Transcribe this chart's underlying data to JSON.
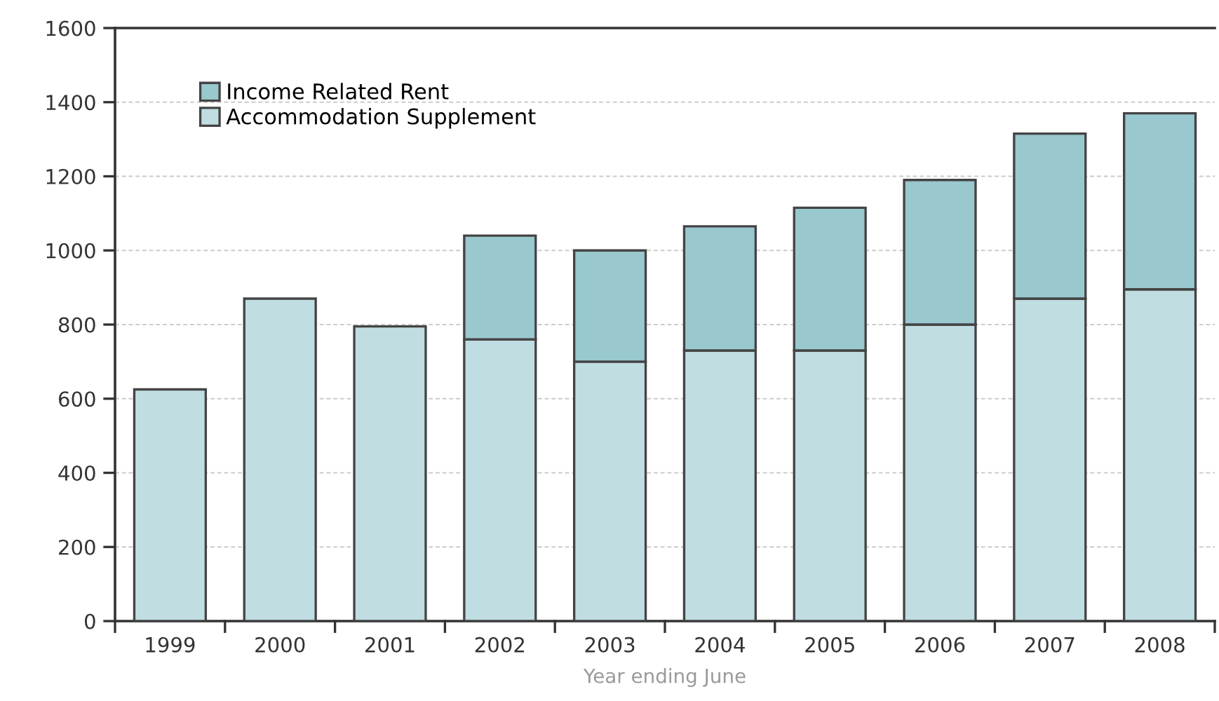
{
  "chart_data": {
    "type": "bar",
    "stacked": true,
    "xlabel": "Year ending June",
    "categories": [
      "1999",
      "2000",
      "2001",
      "2002",
      "2003",
      "2004",
      "2005",
      "2006",
      "2007",
      "2008"
    ],
    "series": [
      {
        "name": "Accommodation Supplement",
        "color": "#c0dde2",
        "values": [
          625,
          870,
          795,
          760,
          700,
          730,
          730,
          800,
          870,
          895
        ]
      },
      {
        "name": "Income Related Rent",
        "color": "#99c8cf",
        "values": [
          null,
          null,
          null,
          280,
          300,
          335,
          385,
          390,
          445,
          475
        ]
      }
    ],
    "ylim": [
      0,
      1600
    ],
    "yticks": [
      0,
      200,
      400,
      600,
      800,
      1000,
      1200,
      1400,
      1600
    ],
    "grid": "y",
    "legend": "top left"
  }
}
